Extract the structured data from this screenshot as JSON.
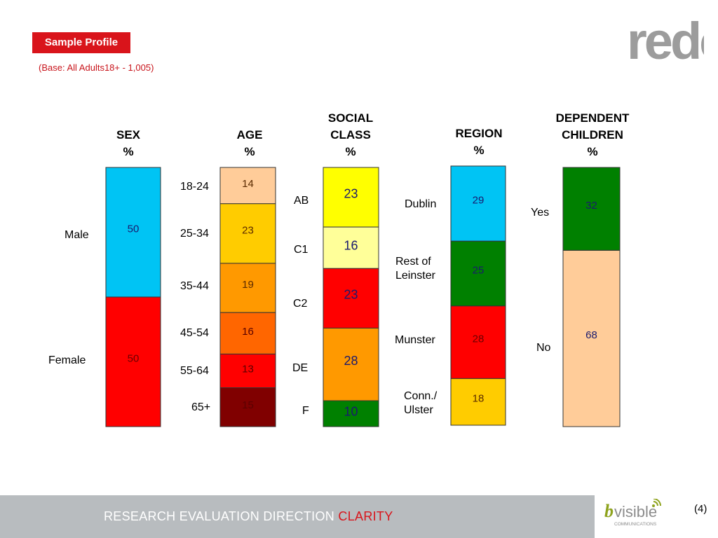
{
  "header": {
    "title": "Sample Profile",
    "subtitle": "(Base: All Adults18+ - 1,005)",
    "logo_text": "redc"
  },
  "chart_data": {
    "type": "bar",
    "stacked": true,
    "columns": [
      {
        "title": "SEX\n%",
        "categories": [
          "Male",
          "Female"
        ],
        "values": [
          50,
          50
        ],
        "colors": [
          "#00c4f4",
          "#ff0000"
        ],
        "label_colors": [
          "#1a1a6e",
          "#6b0000"
        ]
      },
      {
        "title": "AGE\n%",
        "categories": [
          "18-24",
          "25-34",
          "35-44",
          "45-54",
          "55-64",
          "65+"
        ],
        "values": [
          14,
          23,
          19,
          16,
          13,
          15
        ],
        "colors": [
          "#ffcc99",
          "#ffcc00",
          "#ff9900",
          "#ff6600",
          "#ff0000",
          "#800000"
        ],
        "label_colors": [
          "#5a2a00",
          "#5a2a00",
          "#5a2a00",
          "#5a0000",
          "#5a0000",
          "#5a0000"
        ]
      },
      {
        "title": "SOCIAL\nCLASS\n%",
        "categories": [
          "AB",
          "C1",
          "C2",
          "DE",
          "F"
        ],
        "values": [
          23,
          16,
          23,
          28,
          10
        ],
        "colors": [
          "#ffff00",
          "#ffff99",
          "#ff0000",
          "#ff9900",
          "#008000"
        ],
        "label_colors": [
          "#1a1a6e",
          "#1a1a6e",
          "#1a1a6e",
          "#1a1a6e",
          "#1a1a6e"
        ]
      },
      {
        "title": "REGION\n%",
        "categories": [
          "Dublin",
          "Rest of\nLeinster",
          "Munster",
          "Conn./\nUlster"
        ],
        "values": [
          29,
          25,
          28,
          18
        ],
        "colors": [
          "#00c4f4",
          "#008000",
          "#ff0000",
          "#ffcc00"
        ],
        "label_colors": [
          "#1a1a6e",
          "#1a1a6e",
          "#6b0000",
          "#5a2a00"
        ]
      },
      {
        "title": "DEPENDENT\nCHILDREN\n%",
        "categories": [
          "Yes",
          "No"
        ],
        "values": [
          32,
          68
        ],
        "colors": [
          "#008000",
          "#ffcc99"
        ],
        "label_colors": [
          "#1a1a6e",
          "#1a1a6e"
        ]
      }
    ]
  },
  "footer": {
    "tagline": "RESEARCH EVALUATION DIRECTION",
    "tagline_accent": "CLARITY",
    "partner_logo": "bvisible",
    "partner_sub": "COMMUNICATIONS",
    "page_number": "(4)"
  }
}
